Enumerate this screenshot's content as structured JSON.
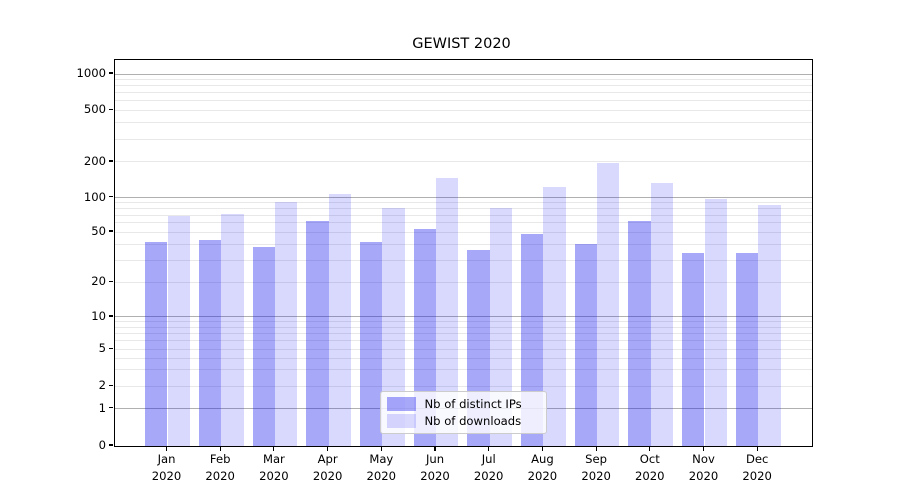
{
  "figure": {
    "title": "GEWIST 2020"
  },
  "chart_data": {
    "type": "bar",
    "title": "GEWIST 2020",
    "categories": [
      "Jan 2020",
      "Feb 2020",
      "Mar 2020",
      "Apr 2020",
      "May 2020",
      "Jun 2020",
      "Jul 2020",
      "Aug 2020",
      "Sep 2020",
      "Oct 2020",
      "Nov 2020",
      "Dec 2020"
    ],
    "x_tick_months": [
      "Jan",
      "Feb",
      "Mar",
      "Apr",
      "May",
      "Jun",
      "Jul",
      "Aug",
      "Sep",
      "Oct",
      "Nov",
      "Dec"
    ],
    "x_tick_year": "2020",
    "series": [
      {
        "name": "Nb of distinct IPs",
        "color": "#a8a8f9",
        "css_color": "rgba(20,20,240,0.37)",
        "values": [
          42,
          43,
          38,
          62,
          42,
          53,
          36,
          48,
          40,
          63,
          34,
          34
        ]
      },
      {
        "name": "Nb of downloads",
        "color": "#d9d9fc",
        "css_color": "rgba(20,20,240,0.16)",
        "values": [
          69,
          72,
          92,
          108,
          82,
          146,
          82,
          123,
          195,
          134,
          97,
          86
        ]
      }
    ],
    "xlabel": "",
    "ylabel": "",
    "yscale": "symlog (linear 0-1, logarithmic above 1)",
    "ylim": [
      0,
      1300
    ],
    "y_tick_labels": [
      "0",
      "1",
      "2",
      "5",
      "10",
      "20",
      "50",
      "100",
      "200",
      "500",
      "1000"
    ],
    "y_tick_values": [
      0,
      1,
      2,
      5,
      10,
      20,
      50,
      100,
      200,
      500,
      1000
    ],
    "grid": {
      "orientation": "horizontal",
      "major_values": [
        1,
        10,
        100,
        1000
      ],
      "minor_values": [
        2,
        3,
        4,
        5,
        6,
        7,
        8,
        9,
        20,
        30,
        40,
        50,
        60,
        70,
        80,
        90,
        200,
        300,
        400,
        500,
        600,
        700,
        800,
        900
      ]
    },
    "legend": {
      "position": "lower center",
      "entries": [
        "Nb of distinct IPs",
        "Nb of downloads"
      ]
    }
  },
  "colors": {
    "bar_distinct_ips": "#a8a8f9",
    "bar_downloads": "#d9d9fc",
    "grid_major": "#b0b0b0",
    "grid_minor": "#e8e8e8",
    "axis": "#000000",
    "legend_border": "#cccccc",
    "background": "#ffffff"
  }
}
